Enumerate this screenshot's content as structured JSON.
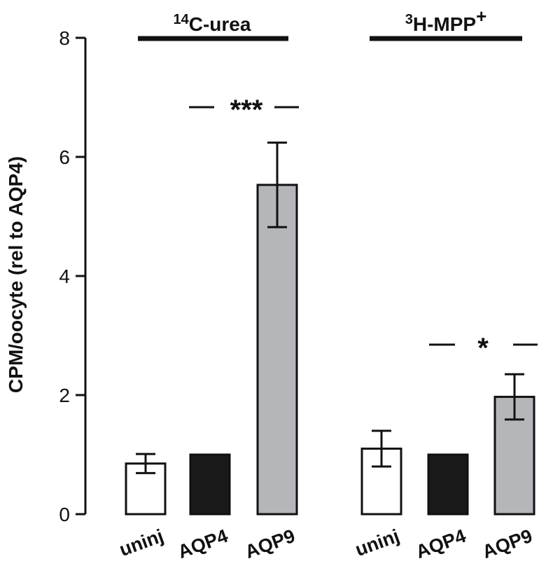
{
  "chart_data": {
    "type": "bar",
    "ylabel": "CPM/oocyte (rel to AQP4)",
    "ylim": [
      0,
      8
    ],
    "yticks": [
      0,
      2,
      4,
      6,
      8
    ],
    "groups": [
      {
        "title_sup": "14",
        "title_main": "C-urea",
        "title_post": "",
        "categories": [
          "uninj",
          "AQP4",
          "AQP9"
        ],
        "values": [
          0.85,
          1.0,
          5.53
        ],
        "errors": [
          0.16,
          0,
          0.71
        ],
        "significance": {
          "label": "***",
          "between": [
            "AQP4",
            "AQP9"
          ]
        }
      },
      {
        "title_sup": "3",
        "title_main": "H-MPP",
        "title_post": "+",
        "categories": [
          "uninj",
          "AQP4",
          "AQP9"
        ],
        "values": [
          1.1,
          1.0,
          1.97
        ],
        "errors": [
          0.3,
          0,
          0.38
        ],
        "significance": {
          "label": "*",
          "between": [
            "AQP4",
            "AQP9"
          ]
        }
      }
    ],
    "bar_colors": {
      "uninj": "#ffffff",
      "AQP4": "#1a1a1a",
      "AQP9": "#b4b6ba"
    },
    "legend": "none",
    "grid": false
  }
}
